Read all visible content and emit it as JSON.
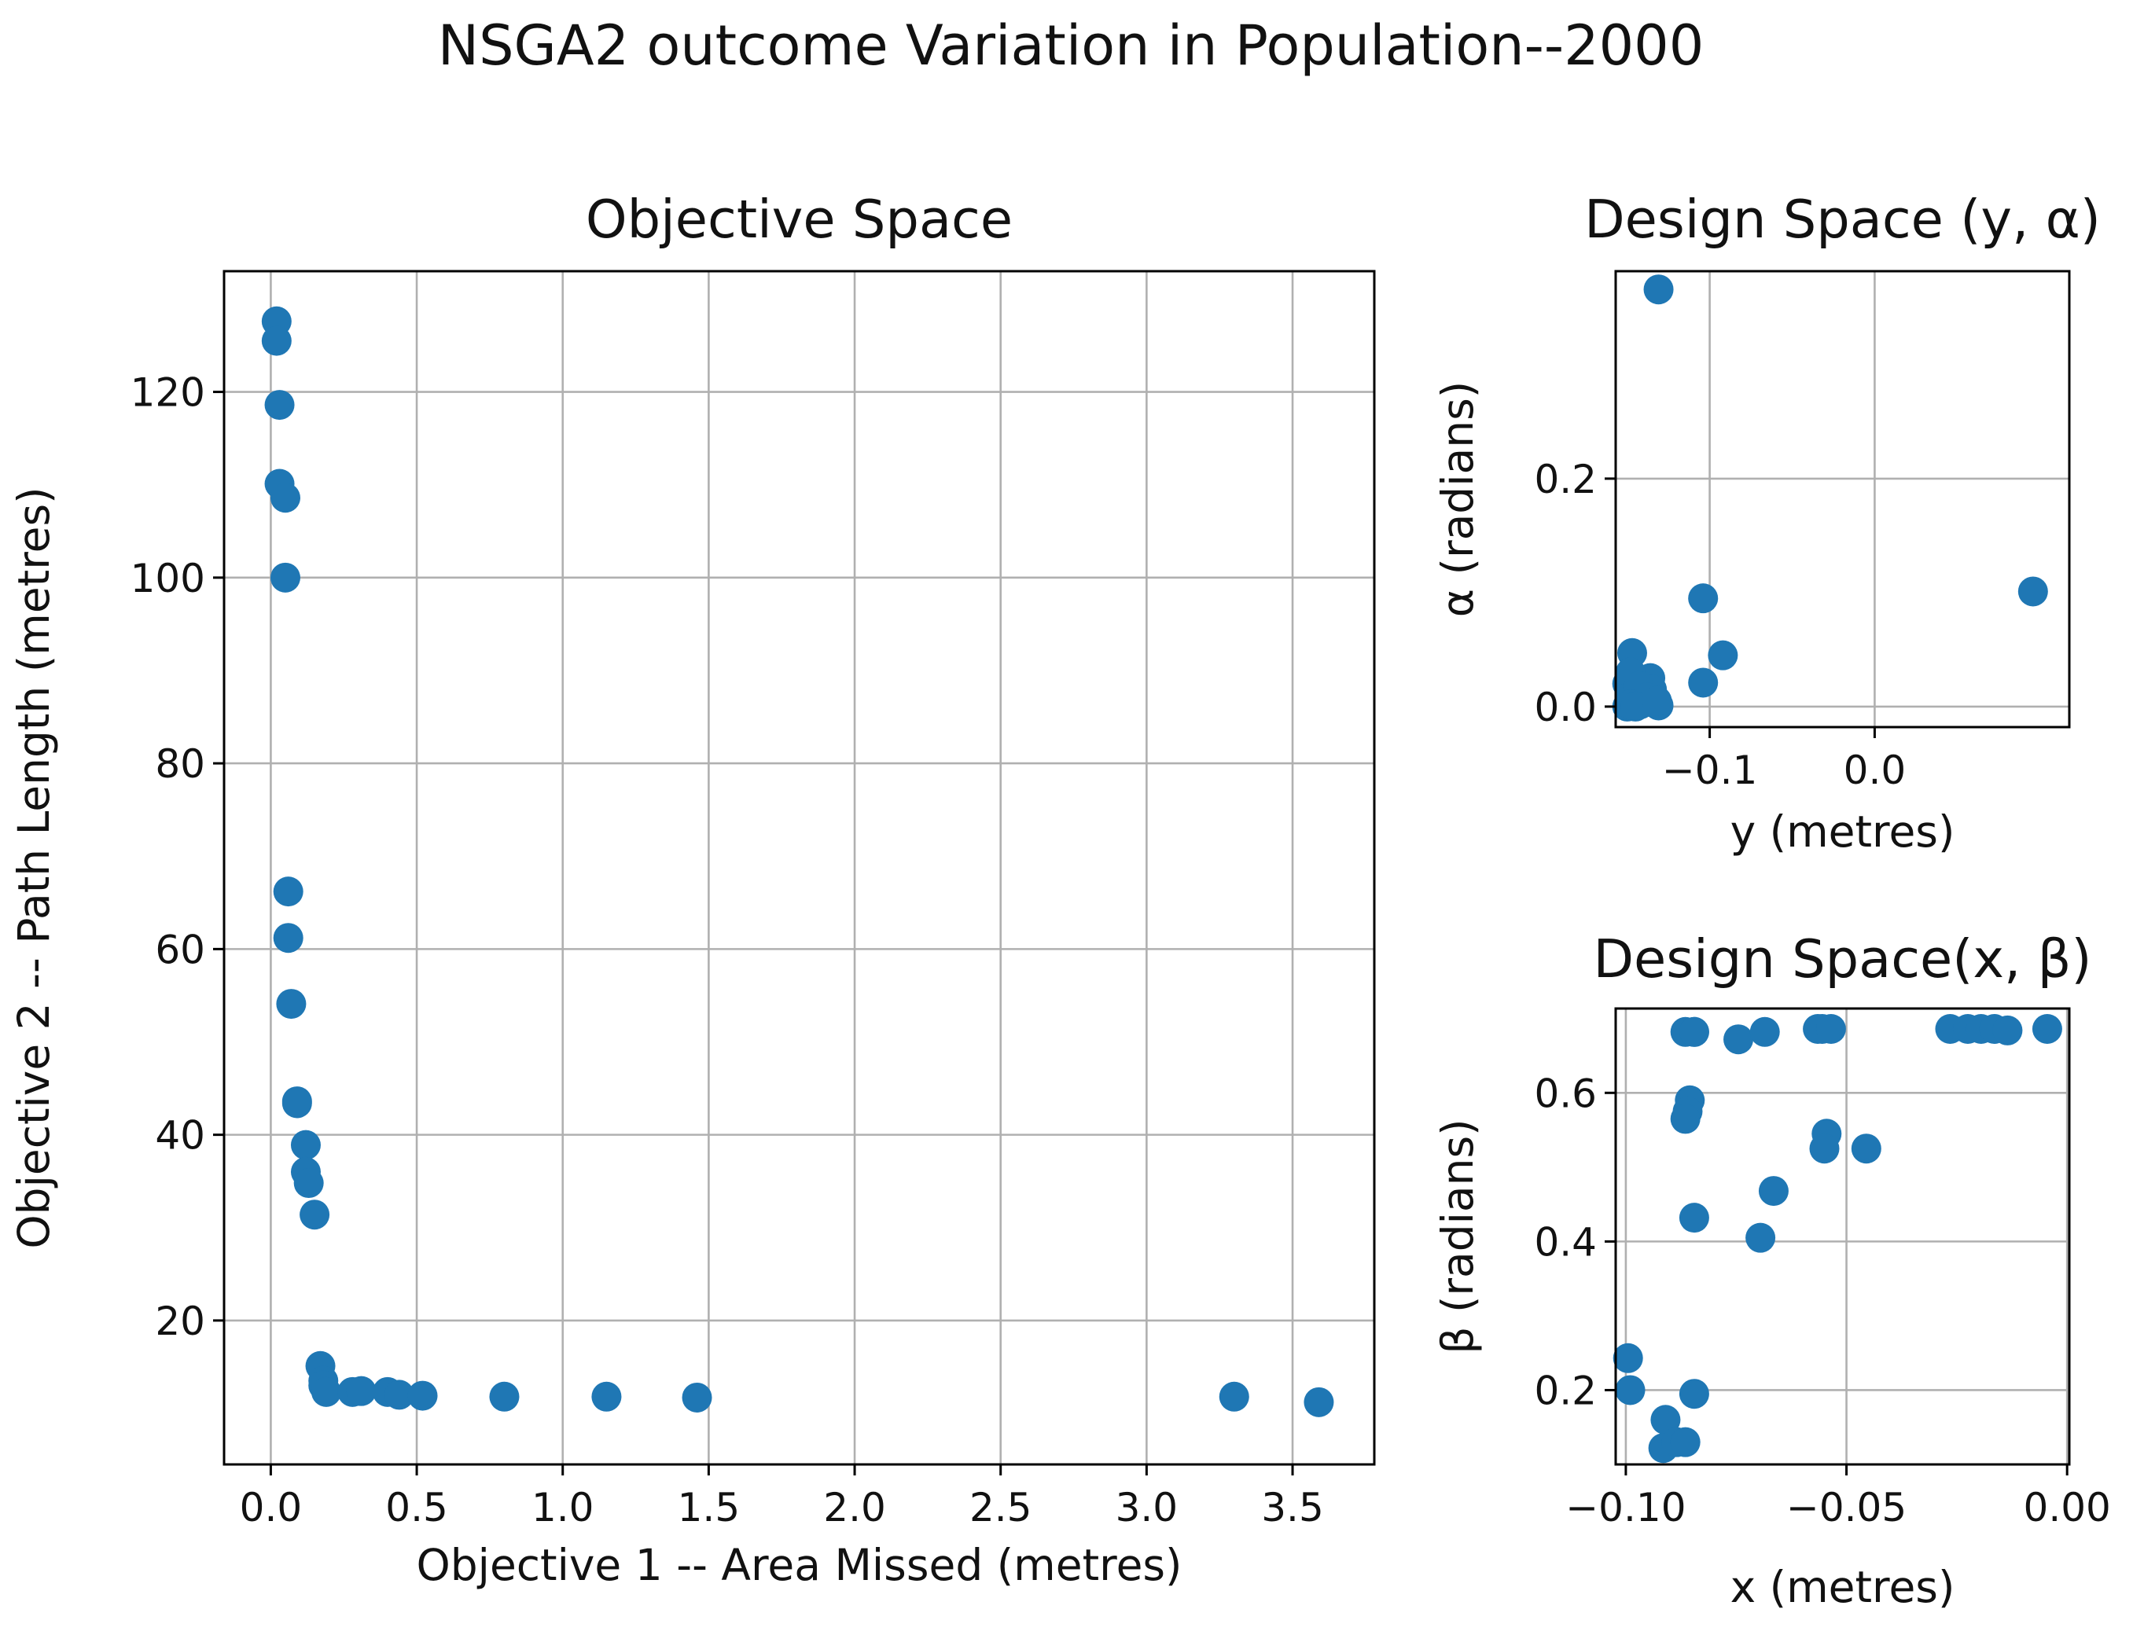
{
  "suptitle": "NSGA2 outcome Variation in Population--2000",
  "colors": {
    "point": "#1f77b4",
    "grid": "#b0b0b0"
  },
  "chart_data": [
    {
      "id": "objective",
      "type": "scatter",
      "title": "Objective Space",
      "xlabel": "Objective 1 -- Area Missed (metres)",
      "ylabel": "Objective 2 -- Path Length (metres)",
      "xlim": [
        -0.16,
        3.78
      ],
      "ylim": [
        4.5,
        133.0
      ],
      "xticks": [
        0.0,
        0.5,
        1.0,
        1.5,
        2.0,
        2.5,
        3.0,
        3.5
      ],
      "xtick_labels": [
        "0.0",
        "0.5",
        "1.0",
        "1.5",
        "2.0",
        "2.5",
        "3.0",
        "3.5"
      ],
      "yticks": [
        20,
        40,
        60,
        80,
        100,
        120
      ],
      "ytick_labels": [
        "20",
        "40",
        "60",
        "80",
        "100",
        "120"
      ],
      "grid": true,
      "x": [
        0.02,
        0.02,
        0.03,
        0.03,
        0.05,
        0.05,
        0.06,
        0.06,
        0.07,
        0.09,
        0.09,
        0.12,
        0.12,
        0.13,
        0.15,
        0.17,
        0.18,
        0.18,
        0.19,
        0.28,
        0.31,
        0.4,
        0.44,
        0.52,
        0.8,
        1.15,
        1.46,
        3.3,
        3.59
      ],
      "y": [
        127.6,
        125.5,
        118.6,
        110.1,
        108.6,
        100.0,
        66.2,
        61.2,
        54.1,
        43.6,
        43.4,
        38.9,
        36.0,
        34.8,
        31.4,
        15.1,
        13.5,
        13.0,
        12.3,
        12.3,
        12.4,
        12.3,
        12.0,
        11.9,
        11.8,
        11.8,
        11.7,
        11.8,
        11.2
      ]
    },
    {
      "id": "design-y-alpha",
      "type": "scatter",
      "title": "Design Space (y, α)",
      "xlabel": "y (metres)",
      "ylabel": "α (radians)",
      "xlim": [
        -0.157,
        0.118
      ],
      "ylim": [
        -0.018,
        0.382
      ],
      "xticks": [
        -0.1,
        0.0
      ],
      "xtick_labels": [
        "−0.1",
        "0.0"
      ],
      "yticks": [
        0.0,
        0.2
      ],
      "ytick_labels": [
        "0.0",
        "0.2"
      ],
      "grid": true,
      "x": [
        -0.131,
        -0.147,
        -0.15,
        -0.148,
        -0.145,
        -0.142,
        -0.136,
        -0.135,
        -0.133,
        -0.15,
        -0.148,
        -0.14,
        -0.131,
        -0.143,
        -0.138,
        -0.148,
        -0.145,
        -0.132,
        -0.104,
        -0.104,
        -0.092,
        0.096
      ],
      "y": [
        0.366,
        0.047,
        0.02,
        0.01,
        0.005,
        0.002,
        0.025,
        0.015,
        0.003,
        0.0,
        0.03,
        0.012,
        0.001,
        0.018,
        0.008,
        0.002,
        0.0,
        0.005,
        0.095,
        0.021,
        0.045,
        0.101
      ]
    },
    {
      "id": "design-x-beta",
      "type": "scatter",
      "title": "Design Space(x, β)",
      "xlabel": "x (metres)",
      "ylabel": "β (radians)",
      "xlim": [
        -0.1023,
        0.0005
      ],
      "ylim": [
        0.1,
        0.7135
      ],
      "xticks": [
        -0.1,
        -0.05,
        0.0
      ],
      "xtick_labels": [
        "−0.10",
        "−0.05",
        "0.00"
      ],
      "yticks": [
        0.2,
        0.4,
        0.6
      ],
      "ytick_labels": [
        "0.2",
        "0.4",
        "0.6"
      ],
      "grid": true,
      "x": [
        -0.0865,
        -0.0845,
        -0.0845,
        -0.0745,
        -0.0685,
        -0.0565,
        -0.0555,
        -0.0535,
        -0.0265,
        -0.0225,
        -0.0195,
        -0.0165,
        -0.0135,
        -0.0045,
        -0.0855,
        -0.086,
        -0.0865,
        -0.0545,
        -0.055,
        -0.0455,
        -0.0665,
        -0.0695,
        -0.0845,
        -0.0995,
        -0.099,
        -0.0845,
        -0.091,
        -0.0915,
        -0.0885,
        -0.0865
      ],
      "y": [
        0.682,
        0.682,
        0.682,
        0.672,
        0.682,
        0.686,
        0.686,
        0.686,
        0.686,
        0.686,
        0.686,
        0.686,
        0.684,
        0.686,
        0.59,
        0.575,
        0.565,
        0.545,
        0.525,
        0.525,
        0.468,
        0.405,
        0.432,
        0.243,
        0.2,
        0.195,
        0.16,
        0.122,
        0.13,
        0.13
      ]
    }
  ]
}
